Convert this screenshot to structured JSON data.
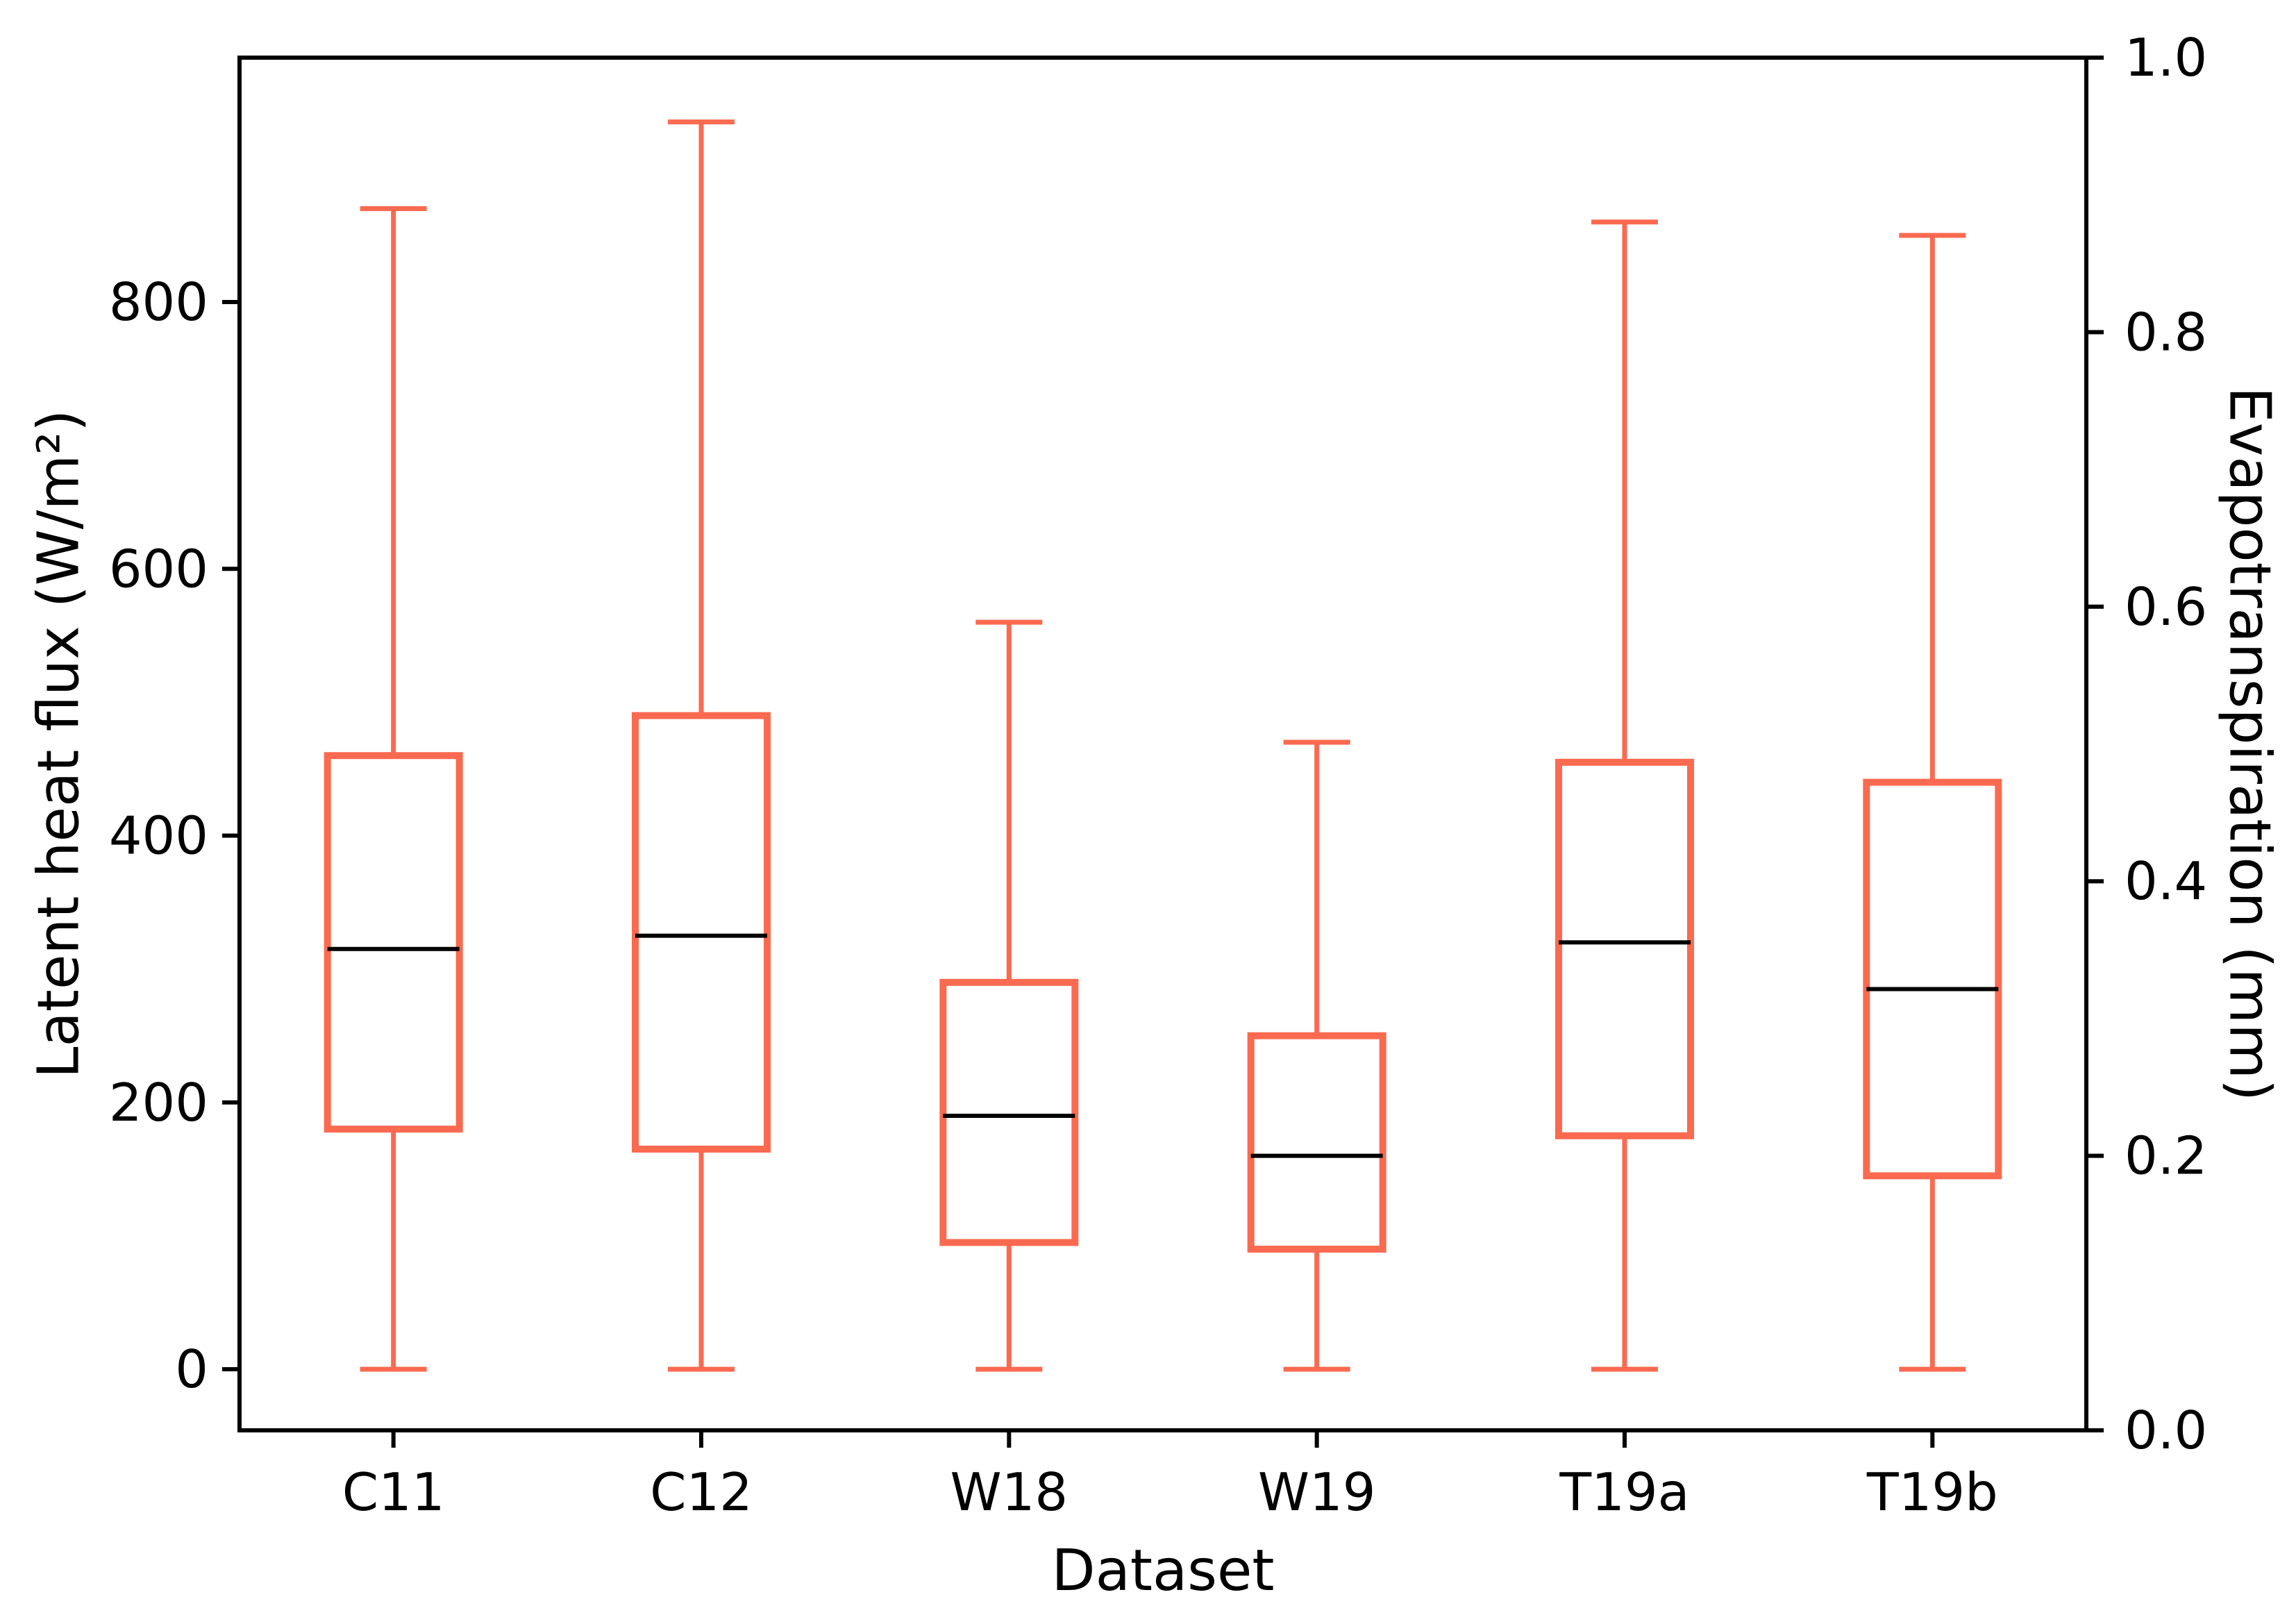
{
  "figure": {
    "background": "#ffffff",
    "box_color": "#FA6A50",
    "median_color": "#000000",
    "axis_color": "#000000"
  },
  "chart_data": {
    "type": "boxplot",
    "title": "",
    "xlabel": "Dataset",
    "ylabel_left": "Latent heat flux (W/m²)",
    "ylabel_right": "Evapotranspiration (mm)",
    "categories": [
      "C11",
      "C12",
      "W18",
      "W19",
      "T19a",
      "T19b"
    ],
    "series": [
      {
        "name": "C11",
        "whislo": 0,
        "q1": 180,
        "med": 315,
        "q3": 460,
        "whishi": 870
      },
      {
        "name": "C12",
        "whislo": 0,
        "q1": 165,
        "med": 325,
        "q3": 490,
        "whishi": 935
      },
      {
        "name": "W18",
        "whislo": 0,
        "q1": 95,
        "med": 190,
        "q3": 290,
        "whishi": 560
      },
      {
        "name": "W19",
        "whislo": 0,
        "q1": 90,
        "med": 160,
        "q3": 250,
        "whishi": 470
      },
      {
        "name": "T19a",
        "whislo": 0,
        "q1": 175,
        "med": 320,
        "q3": 455,
        "whishi": 860
      },
      {
        "name": "T19b",
        "whislo": 0,
        "q1": 145,
        "med": 285,
        "q3": 440,
        "whishi": 850
      }
    ],
    "y_axis_left": {
      "tick_values": [
        0,
        200,
        400,
        600,
        800
      ],
      "tick_labels": [
        "0",
        "200",
        "400",
        "600",
        "800"
      ],
      "lim": [
        -46,
        988
      ]
    },
    "y_axis_right": {
      "tick_values": [
        0.0,
        0.2,
        0.4,
        0.6,
        0.8,
        1.0
      ],
      "tick_labels": [
        "0.0",
        "0.2",
        "0.4",
        "0.6",
        "0.8",
        "1.0"
      ],
      "lim": [
        0.0,
        1.0
      ]
    },
    "grid": false,
    "legend": false
  }
}
